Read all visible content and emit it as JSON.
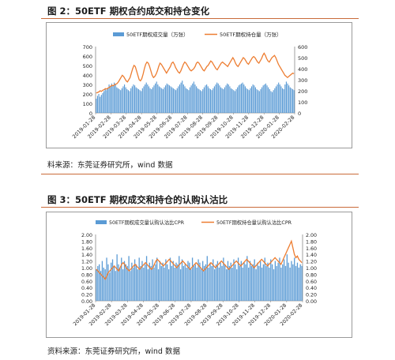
{
  "figure1": {
    "title": "图 2：50ETF 期权合约成交和持仓变化",
    "source": "料来源：东莞证券研究所，wind 数据"
  },
  "figure2": {
    "title": "图 3：50ETF 期权成交和持仓的认购认沽比",
    "source": "资料来源：东莞证券研究所，wind 数据"
  },
  "colors": {
    "bar": "#5b9bd5",
    "line": "#ed7d31",
    "rule": "#c96b3a"
  },
  "chart_data": [
    {
      "type": "bar+line",
      "title": "",
      "legend": [
        "50ETF期权成交量（万张）",
        "50ETF期权持仓量（万张）"
      ],
      "legend_position": "top",
      "x_tick_labels": [
        "2019-01-28",
        "2019-02-28",
        "2019-03-28",
        "2019-04-28",
        "2019-05-28",
        "2019-06-28",
        "2019-07-28",
        "2019-08-28",
        "2019-09-28",
        "2019-10-28",
        "2019-11-28",
        "2019-12-28",
        "2020-01-28",
        "2020-02-28"
      ],
      "y_left": {
        "min": 0,
        "max": 700,
        "ticks": [
          0,
          100,
          200,
          300,
          400,
          500,
          600,
          700
        ]
      },
      "y_right": {
        "min": 0,
        "max": 600,
        "ticks": [
          0,
          100,
          200,
          300,
          400,
          500,
          600
        ]
      },
      "grid": false,
      "series": [
        {
          "name": "50ETF期权成交量（万张）",
          "type": "bar",
          "axis": "left",
          "values": [
            150,
            180,
            200,
            170,
            190,
            210,
            230,
            250,
            240,
            260,
            300,
            280,
            310,
            290,
            320,
            300,
            270,
            260,
            250,
            240,
            260,
            280,
            300,
            270,
            250,
            240,
            230,
            260,
            280,
            300,
            290,
            270,
            260,
            250,
            240,
            230,
            260,
            280,
            300,
            320,
            300,
            280,
            260,
            250,
            270,
            290,
            310,
            330,
            300,
            280,
            270,
            260,
            250,
            270,
            290,
            310,
            300,
            290,
            280,
            270,
            260,
            250,
            240,
            260,
            280,
            300,
            320,
            340,
            300,
            280,
            260,
            250,
            240,
            270,
            290,
            310,
            330,
            300,
            280,
            260,
            250,
            240,
            230,
            250,
            270,
            290,
            300,
            280,
            260,
            250,
            240,
            260,
            280,
            300,
            320,
            310,
            290,
            270,
            260,
            250,
            270,
            290,
            310,
            300,
            280,
            260,
            250,
            240,
            230,
            250,
            270,
            290,
            300,
            310,
            320,
            300,
            280,
            260,
            250,
            240,
            260,
            280,
            300,
            290,
            270,
            250,
            240,
            230,
            250,
            270,
            290,
            300,
            310,
            290,
            270,
            250,
            230,
            220,
            240,
            260,
            280,
            300,
            320,
            300,
            280,
            260,
            250,
            300,
            330,
            310,
            290,
            270,
            260,
            250,
            240
          ]
        },
        {
          "name": "50ETF期权持仓量（万张）",
          "type": "line",
          "axis": "right",
          "values": [
            180,
            185,
            190,
            200,
            195,
            205,
            210,
            220,
            215,
            225,
            230,
            240,
            250,
            245,
            255,
            260,
            265,
            280,
            300,
            320,
            340,
            330,
            310,
            290,
            280,
            300,
            320,
            360,
            400,
            430,
            420,
            380,
            340,
            300,
            290,
            310,
            350,
            400,
            440,
            460,
            450,
            420,
            380,
            340,
            320,
            330,
            350,
            380,
            420,
            450,
            440,
            420,
            400,
            380,
            360,
            380,
            400,
            420,
            450,
            460,
            440,
            410,
            390,
            370,
            360,
            380,
            410,
            440,
            460,
            450,
            430,
            410,
            390,
            380,
            390,
            400,
            420,
            450,
            460,
            450,
            430,
            410,
            390,
            380,
            400,
            420,
            430,
            450,
            470,
            460,
            440,
            420,
            400,
            390,
            410,
            430,
            450,
            460,
            450,
            440,
            430,
            420,
            440,
            460,
            480,
            500,
            480,
            450,
            430,
            420,
            440,
            460,
            480,
            500,
            490,
            470,
            450,
            440,
            460,
            480,
            500,
            510,
            500,
            480,
            460,
            450,
            470,
            490,
            520,
            540,
            520,
            490,
            470,
            460,
            480,
            500,
            510,
            520,
            500,
            470,
            440,
            420,
            400,
            380,
            360,
            340,
            330,
            320,
            330,
            340,
            350,
            360,
            355
          ]
        }
      ]
    },
    {
      "type": "bar+line",
      "title": "",
      "legend": [
        "50ETF期权成交量认购认沽比CPR",
        "50ETF期权持仓量认购认沽比CPR"
      ],
      "legend_position": "top",
      "x_tick_labels": [
        "2019-01-28",
        "2019-02-28",
        "2019-03-28",
        "2019-04-28",
        "2019-05-28",
        "2019-06-28",
        "2019-07-28",
        "2019-08-28",
        "2019-09-28",
        "2019-10-28",
        "2019-11-28",
        "2019-12-28",
        "2020-01-28",
        "2020-02-28"
      ],
      "y_left": {
        "min": 0,
        "max": 2.0,
        "ticks": [
          "0.00",
          "0.20",
          "0.40",
          "0.60",
          "0.80",
          "1.00",
          "1.20",
          "1.40",
          "1.60",
          "1.80",
          "2.00"
        ]
      },
      "y_right": {
        "min": 0,
        "max": 2.0,
        "ticks": [
          "0.00",
          "0.20",
          "0.40",
          "0.60",
          "0.80",
          "1.00",
          "1.20",
          "1.40",
          "1.60",
          "1.80",
          "2.00"
        ]
      },
      "grid": false,
      "series": [
        {
          "name": "50ETF期权成交量认购认沽比CPR",
          "type": "bar",
          "axis": "left",
          "values": [
            0.95,
            1.05,
            1.1,
            0.9,
            1.2,
            1.0,
            0.95,
            1.3,
            1.1,
            0.85,
            1.15,
            1.25,
            1.05,
            0.9,
            1.4,
            1.1,
            1.0,
            1.3,
            0.95,
            1.2,
            1.1,
            1.05,
            1.35,
            0.9,
            1.15,
            1.0,
            1.25,
            1.1,
            0.95,
            1.3,
            1.05,
            1.2,
            1.0,
            1.1,
            1.35,
            0.95,
            1.15,
            1.05,
            1.25,
            1.0,
            1.1,
            1.3,
            0.95,
            1.2,
            1.05,
            1.15,
            1.0,
            1.25,
            1.1,
            0.95,
            1.3,
            1.05,
            1.2,
            1.0,
            1.15,
            1.1,
            1.35,
            0.95,
            1.25,
            1.05,
            1.1,
            1.0,
            1.2,
            1.15,
            0.95,
            1.3,
            1.05,
            1.1,
            1.0,
            1.25,
            1.15,
            0.95,
            1.2,
            1.05,
            1.1,
            1.35,
            1.0,
            1.15,
            1.05,
            1.25,
            0.95,
            1.1,
            1.2,
            1.0,
            1.15,
            1.05,
            1.3,
            1.1,
            0.95,
            1.2,
            1.05,
            1.15,
            1.0,
            1.25,
            1.1,
            0.95,
            1.3,
            1.05,
            1.2,
            1.0,
            1.15,
            1.1,
            1.35,
            1.0,
            1.2,
            1.05,
            1.1,
            1.25,
            0.95,
            1.15,
            1.05,
            1.2,
            1.0,
            1.1,
            1.3,
            1.05,
            1.15,
            1.0,
            1.25,
            1.1,
            0.95,
            1.2,
            1.05,
            1.15,
            1.3,
            1.0,
            1.1,
            1.25,
            1.05,
            1.4,
            1.15,
            1.0,
            1.2,
            1.1,
            1.3,
            1.05,
            1.15,
            1.0,
            1.1,
            1.05
          ]
        },
        {
          "name": "50ETF期权持仓量认购认沽比CPR",
          "type": "line",
          "axis": "right",
          "values": [
            0.95,
            0.9,
            0.85,
            0.8,
            0.75,
            0.7,
            0.65,
            0.75,
            0.85,
            0.9,
            0.95,
            1.0,
            1.05,
            1.0,
            0.95,
            0.9,
            1.0,
            1.1,
            1.15,
            1.1,
            1.0,
            0.95,
            0.9,
            0.95,
            1.0,
            1.05,
            1.1,
            1.05,
            1.0,
            0.95,
            1.0,
            1.05,
            1.1,
            1.15,
            1.1,
            1.05,
            1.0,
            0.95,
            1.0,
            1.1,
            1.2,
            1.25,
            1.2,
            1.15,
            1.1,
            1.05,
            1.1,
            1.15,
            1.2,
            1.25,
            1.2,
            1.15,
            1.1,
            1.05,
            1.0,
            1.05,
            1.1,
            1.15,
            1.2,
            1.15,
            1.1,
            1.05,
            1.0,
            0.95,
            1.0,
            1.05,
            1.1,
            1.15,
            1.1,
            1.05,
            1.0,
            0.95,
            0.9,
            0.95,
            1.0,
            1.05,
            1.1,
            1.15,
            1.1,
            1.05,
            1.0,
            1.05,
            1.1,
            1.15,
            1.2,
            1.15,
            1.1,
            1.05,
            1.0,
            0.95,
            1.0,
            1.05,
            1.1,
            1.15,
            1.2,
            1.15,
            1.1,
            1.05,
            1.1,
            1.15,
            1.2,
            1.25,
            1.2,
            1.15,
            1.1,
            1.05,
            1.0,
            1.05,
            1.1,
            1.15,
            1.2,
            1.25,
            1.2,
            1.15,
            1.1,
            1.05,
            1.1,
            1.15,
            1.2,
            1.25,
            1.3,
            1.25,
            1.2,
            1.15,
            1.1,
            1.2,
            1.3,
            1.4,
            1.5,
            1.6,
            1.7,
            1.8,
            1.6,
            1.4,
            1.3,
            1.35,
            1.25,
            1.2,
            1.15
          ]
        }
      ]
    }
  ]
}
